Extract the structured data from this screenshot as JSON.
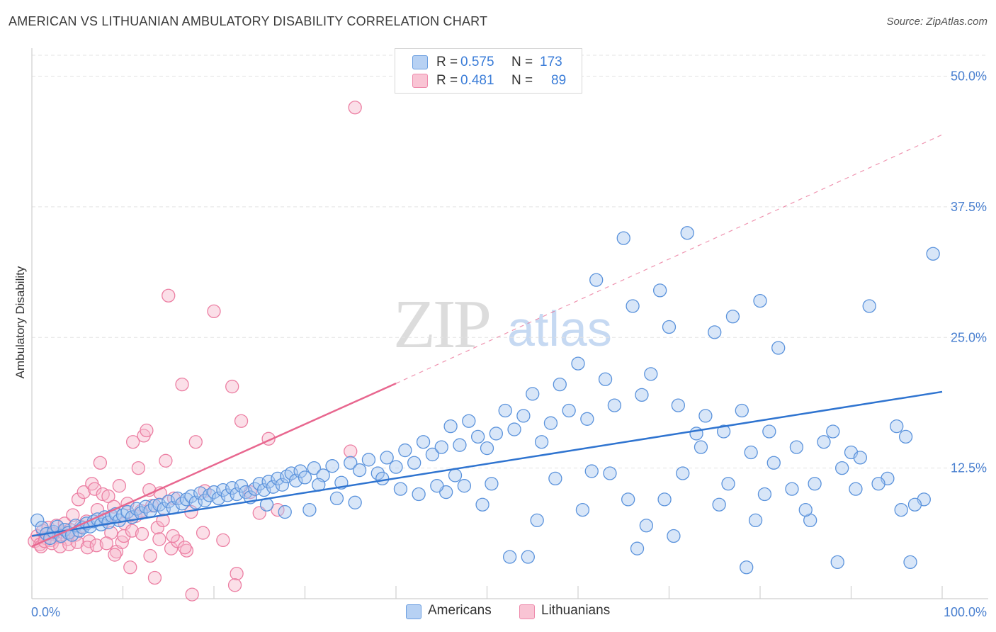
{
  "header": {
    "title": "AMERICAN VS LITHUANIAN AMBULATORY DISABILITY CORRELATION CHART",
    "source": "Source: ZipAtlas.com"
  },
  "watermark": {
    "zip": "ZIP",
    "atlas": "atlas"
  },
  "legend": {
    "rows": [
      {
        "r_label": "R =",
        "r_value": "0.575",
        "n_label": "N =",
        "n_value": "173"
      },
      {
        "r_label": "R =",
        "r_value": "0.481",
        "n_label": "N =",
        "n_value": "89"
      }
    ]
  },
  "bottom_legend": {
    "americans": "Americans",
    "lithuanians": "Lithuanians"
  },
  "colors": {
    "americans_fill": "#a9c8f0",
    "americans_stroke": "#5b93dc",
    "americans_line": "#2f74d0",
    "lithuanians_fill": "#f7b8cc",
    "lithuanians_stroke": "#ec7fa3",
    "lithuanians_line": "#e8678f",
    "axis_text": "#4a80d0",
    "grid": "#e3e3e3"
  },
  "chart_data": {
    "type": "scatter",
    "title": "AMERICAN VS LITHUANIAN AMBULATORY DISABILITY CORRELATION CHART",
    "ylabel": "Ambulatory Disability",
    "xlabel": "",
    "xlim": [
      0,
      100
    ],
    "ylim": [
      0,
      52
    ],
    "x_tick_labels": [
      "0.0%",
      "100.0%"
    ],
    "y_ticks": [
      12.5,
      25.0,
      37.5,
      50.0
    ],
    "y_tick_labels": [
      "12.5%",
      "25.0%",
      "37.5%",
      "50.0%"
    ],
    "grid": "horizontal dashed",
    "legend_position": "top-center",
    "series": [
      {
        "name": "Americans",
        "points": [
          [
            0.6,
            7.5
          ],
          [
            1.1,
            6.8
          ],
          [
            1.6,
            6.2
          ],
          [
            2.0,
            5.8
          ],
          [
            2.4,
            6.4
          ],
          [
            2.8,
            6.9
          ],
          [
            3.2,
            6.0
          ],
          [
            3.6,
            6.6
          ],
          [
            4.0,
            6.3
          ],
          [
            4.4,
            6.1
          ],
          [
            4.8,
            7.0
          ],
          [
            5.2,
            6.5
          ],
          [
            5.6,
            6.8
          ],
          [
            6.0,
            7.2
          ],
          [
            6.4,
            6.9
          ],
          [
            6.8,
            7.4
          ],
          [
            7.2,
            7.6
          ],
          [
            7.6,
            7.1
          ],
          [
            8.0,
            7.8
          ],
          [
            8.4,
            7.3
          ],
          [
            8.8,
            7.9
          ],
          [
            9.2,
            8.1
          ],
          [
            9.6,
            7.5
          ],
          [
            10.0,
            8.0
          ],
          [
            10.5,
            8.3
          ],
          [
            11.0,
            7.8
          ],
          [
            11.5,
            8.6
          ],
          [
            12.0,
            8.2
          ],
          [
            12.5,
            8.8
          ],
          [
            13.0,
            8.4
          ],
          [
            13.5,
            8.9
          ],
          [
            14.0,
            9.0
          ],
          [
            14.5,
            8.6
          ],
          [
            15.0,
            9.3
          ],
          [
            15.5,
            8.7
          ],
          [
            16.0,
            9.6
          ],
          [
            16.5,
            9.1
          ],
          [
            17.0,
            9.5
          ],
          [
            17.5,
            9.8
          ],
          [
            18.0,
            9.2
          ],
          [
            18.5,
            10.1
          ],
          [
            19.0,
            9.4
          ],
          [
            19.5,
            9.9
          ],
          [
            20.0,
            10.2
          ],
          [
            20.5,
            9.6
          ],
          [
            21.0,
            10.4
          ],
          [
            21.5,
            9.9
          ],
          [
            22.0,
            10.6
          ],
          [
            22.5,
            10.0
          ],
          [
            23.0,
            10.8
          ],
          [
            23.5,
            10.2
          ],
          [
            24.0,
            9.7
          ],
          [
            24.5,
            10.5
          ],
          [
            25.0,
            11.0
          ],
          [
            25.5,
            10.4
          ],
          [
            26.0,
            11.2
          ],
          [
            26.5,
            10.7
          ],
          [
            27.0,
            11.5
          ],
          [
            27.5,
            10.9
          ],
          [
            28.0,
            11.7
          ],
          [
            28.5,
            12.0
          ],
          [
            29.0,
            11.3
          ],
          [
            29.5,
            12.2
          ],
          [
            30.0,
            11.6
          ],
          [
            31.0,
            12.5
          ],
          [
            32.0,
            11.8
          ],
          [
            33.0,
            12.7
          ],
          [
            34.0,
            11.1
          ],
          [
            35.0,
            13.0
          ],
          [
            36.0,
            12.3
          ],
          [
            37.0,
            13.3
          ],
          [
            38.0,
            12.0
          ],
          [
            39.0,
            13.5
          ],
          [
            40.0,
            12.6
          ],
          [
            41.0,
            14.2
          ],
          [
            42.0,
            13.0
          ],
          [
            43.0,
            15.0
          ],
          [
            44.0,
            13.8
          ],
          [
            45.0,
            14.5
          ],
          [
            46.0,
            16.5
          ],
          [
            47.0,
            14.7
          ],
          [
            48.0,
            17.0
          ],
          [
            49.0,
            15.5
          ],
          [
            50.0,
            14.4
          ],
          [
            51.0,
            15.8
          ],
          [
            52.0,
            18.0
          ],
          [
            53.0,
            16.2
          ],
          [
            54.0,
            17.5
          ],
          [
            55.0,
            19.6
          ],
          [
            56.0,
            15.0
          ],
          [
            57.0,
            16.8
          ],
          [
            58.0,
            20.5
          ],
          [
            59.0,
            18.0
          ],
          [
            60.0,
            22.5
          ],
          [
            61.0,
            17.2
          ],
          [
            62.0,
            30.5
          ],
          [
            63.0,
            21.0
          ],
          [
            64.0,
            18.5
          ],
          [
            65.0,
            34.5
          ],
          [
            66.0,
            28.0
          ],
          [
            67.0,
            19.5
          ],
          [
            68.0,
            21.5
          ],
          [
            69.0,
            29.5
          ],
          [
            70.0,
            26.0
          ],
          [
            71.0,
            18.5
          ],
          [
            72.0,
            35.0
          ],
          [
            73.0,
            15.8
          ],
          [
            74.0,
            17.5
          ],
          [
            75.0,
            25.5
          ],
          [
            76.0,
            16.0
          ],
          [
            77.0,
            27.0
          ],
          [
            78.0,
            18.0
          ],
          [
            79.0,
            14.0
          ],
          [
            80.0,
            28.5
          ],
          [
            81.0,
            16.0
          ],
          [
            82.0,
            24.0
          ],
          [
            84.0,
            14.5
          ],
          [
            86.0,
            11.0
          ],
          [
            88.0,
            16.0
          ],
          [
            90.0,
            14.0
          ],
          [
            92.0,
            28.0
          ],
          [
            94.0,
            11.5
          ],
          [
            96.0,
            15.5
          ],
          [
            98.0,
            9.5
          ],
          [
            99.0,
            33.0
          ],
          [
            30.5,
            8.5
          ],
          [
            35.5,
            9.2
          ],
          [
            40.5,
            10.5
          ],
          [
            45.5,
            10.2
          ],
          [
            50.5,
            11.0
          ],
          [
            55.5,
            7.5
          ],
          [
            60.5,
            8.5
          ],
          [
            65.5,
            9.5
          ],
          [
            70.5,
            6.0
          ],
          [
            75.5,
            9.0
          ],
          [
            80.5,
            10.0
          ],
          [
            85.5,
            7.5
          ],
          [
            90.5,
            10.5
          ],
          [
            95.5,
            8.5
          ],
          [
            52.5,
            4.0
          ],
          [
            54.5,
            4.0
          ],
          [
            66.5,
            4.8
          ],
          [
            78.5,
            3.0
          ],
          [
            88.5,
            3.5
          ],
          [
            96.5,
            3.5
          ],
          [
            47.5,
            10.8
          ],
          [
            49.5,
            9.0
          ],
          [
            57.5,
            11.5
          ],
          [
            61.5,
            12.2
          ],
          [
            63.5,
            12.0
          ],
          [
            67.5,
            7.0
          ],
          [
            69.5,
            9.5
          ],
          [
            71.5,
            12.0
          ],
          [
            73.5,
            14.5
          ],
          [
            76.5,
            11.0
          ],
          [
            79.5,
            7.5
          ],
          [
            81.5,
            13.0
          ],
          [
            83.5,
            10.5
          ],
          [
            85.0,
            8.5
          ],
          [
            87.0,
            15.0
          ],
          [
            89.0,
            12.5
          ],
          [
            91.0,
            13.5
          ],
          [
            93.0,
            11.0
          ],
          [
            95.0,
            16.5
          ],
          [
            97.0,
            9.0
          ],
          [
            38.5,
            11.5
          ],
          [
            42.5,
            10.0
          ],
          [
            44.5,
            10.8
          ],
          [
            46.5,
            11.8
          ],
          [
            33.5,
            9.6
          ],
          [
            31.5,
            10.9
          ],
          [
            27.8,
            8.3
          ],
          [
            25.8,
            9.0
          ]
        ]
      },
      {
        "name": "Lithuanians",
        "points": [
          [
            0.3,
            5.5
          ],
          [
            0.6,
            6.0
          ],
          [
            0.9,
            5.2
          ],
          [
            1.2,
            6.5
          ],
          [
            1.5,
            5.8
          ],
          [
            1.8,
            6.8
          ],
          [
            2.1,
            5.6
          ],
          [
            2.4,
            6.2
          ],
          [
            2.7,
            7.0
          ],
          [
            3.0,
            5.9
          ],
          [
            3.3,
            6.4
          ],
          [
            3.6,
            7.2
          ],
          [
            3.9,
            5.7
          ],
          [
            4.2,
            6.6
          ],
          [
            4.5,
            8.0
          ],
          [
            4.8,
            6.1
          ],
          [
            5.1,
            9.5
          ],
          [
            5.4,
            6.9
          ],
          [
            5.7,
            10.2
          ],
          [
            6.0,
            7.4
          ],
          [
            6.3,
            5.5
          ],
          [
            6.6,
            11.0
          ],
          [
            6.9,
            10.5
          ],
          [
            7.2,
            8.5
          ],
          [
            7.5,
            13.0
          ],
          [
            7.8,
            10.0
          ],
          [
            8.1,
            7.6
          ],
          [
            8.4,
            9.8
          ],
          [
            8.7,
            6.3
          ],
          [
            9.0,
            8.8
          ],
          [
            9.3,
            4.5
          ],
          [
            9.6,
            10.8
          ],
          [
            9.9,
            5.4
          ],
          [
            10.2,
            7.2
          ],
          [
            10.5,
            9.1
          ],
          [
            10.8,
            3.0
          ],
          [
            11.1,
            15.0
          ],
          [
            11.4,
            7.9
          ],
          [
            11.7,
            12.5
          ],
          [
            12.0,
            8.4
          ],
          [
            12.3,
            15.6
          ],
          [
            12.6,
            16.1
          ],
          [
            12.9,
            10.4
          ],
          [
            13.2,
            8.9
          ],
          [
            13.5,
            2.0
          ],
          [
            13.8,
            6.8
          ],
          [
            14.1,
            10.1
          ],
          [
            14.4,
            7.5
          ],
          [
            14.7,
            13.2
          ],
          [
            15.0,
            29.0
          ],
          [
            15.3,
            4.8
          ],
          [
            15.6,
            9.6
          ],
          [
            16.0,
            5.5
          ],
          [
            16.5,
            20.5
          ],
          [
            17.0,
            4.6
          ],
          [
            17.5,
            8.3
          ],
          [
            18.0,
            15.0
          ],
          [
            19.0,
            10.3
          ],
          [
            20.0,
            27.5
          ],
          [
            21.0,
            5.6
          ],
          [
            22.0,
            20.3
          ],
          [
            22.5,
            2.4
          ],
          [
            23.0,
            17.0
          ],
          [
            24.0,
            10.2
          ],
          [
            25.0,
            8.2
          ],
          [
            26.0,
            15.3
          ],
          [
            27.0,
            8.5
          ],
          [
            35.0,
            14.1
          ],
          [
            35.5,
            47.0
          ],
          [
            1.0,
            5.0
          ],
          [
            1.4,
            5.5
          ],
          [
            2.2,
            5.3
          ],
          [
            3.1,
            5.0
          ],
          [
            4.1,
            5.2
          ],
          [
            5.0,
            5.4
          ],
          [
            6.1,
            4.9
          ],
          [
            7.1,
            5.1
          ],
          [
            8.2,
            5.3
          ],
          [
            9.1,
            4.2
          ],
          [
            10.1,
            6.0
          ],
          [
            11.0,
            6.5
          ],
          [
            12.1,
            6.2
          ],
          [
            13.0,
            4.1
          ],
          [
            14.0,
            5.7
          ],
          [
            15.5,
            6.0
          ],
          [
            16.8,
            4.9
          ],
          [
            18.8,
            6.3
          ],
          [
            22.3,
            1.3
          ],
          [
            17.6,
            0.4
          ]
        ]
      }
    ],
    "trend_lines": [
      {
        "series": "Americans",
        "x": [
          0,
          100
        ],
        "y": [
          6.0,
          19.8
        ]
      },
      {
        "series": "Lithuanians",
        "x": [
          0,
          40
        ],
        "y": [
          5.0,
          20.6
        ],
        "dashed_extension_to": [
          100,
          44.4
        ]
      }
    ]
  }
}
